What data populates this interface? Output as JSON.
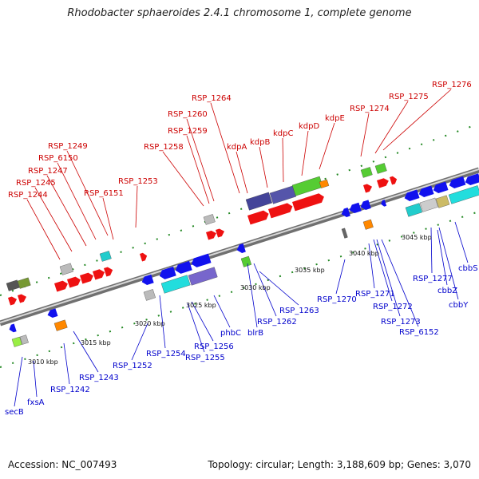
{
  "title": "Rhodobacter sphaeroides 2.4.1 chromosome 1, complete genome",
  "footer": {
    "accession": "Accession: NC_007493",
    "stats": "Topology: circular; Length: 3,188,609 bp; Genes: 3,070"
  },
  "colors": {
    "top_labels": "#cc0000",
    "bottom_labels": "#0000cc",
    "backbone": "#888888"
  },
  "top_genes": [
    "RSP_1244",
    "RSP_1245",
    "RSP_1247",
    "RSP_6150",
    "RSP_1249",
    "RSP_6151",
    "RSP_1253",
    "RSP_1258",
    "RSP_1259",
    "RSP_1260",
    "RSP_1264",
    "kdpA",
    "kdpB",
    "kdpC",
    "kdpD",
    "kdpE",
    "RSP_1274",
    "RSP_1275",
    "RSP_1276"
  ],
  "bottom_genes": [
    "secB",
    "fxsA",
    "RSP_1242",
    "RSP_1243",
    "RSP_1252",
    "RSP_1254",
    "RSP_1255",
    "RSP_1256",
    "phbC",
    "blrB",
    "RSP_1262",
    "RSP_1263",
    "RSP_1270",
    "RSP_1271",
    "RSP_1272",
    "RSP_1273",
    "RSP_6152",
    "RSP_1277",
    "cbbZ",
    "cbbY",
    "cbbS"
  ],
  "ticks": [
    "3010 kbp",
    "3015 kbp",
    "3020 kbp",
    "3025 kbp",
    "3030 kbp",
    "3035 kbp",
    "3040 kbp",
    "3045 kbp"
  ]
}
